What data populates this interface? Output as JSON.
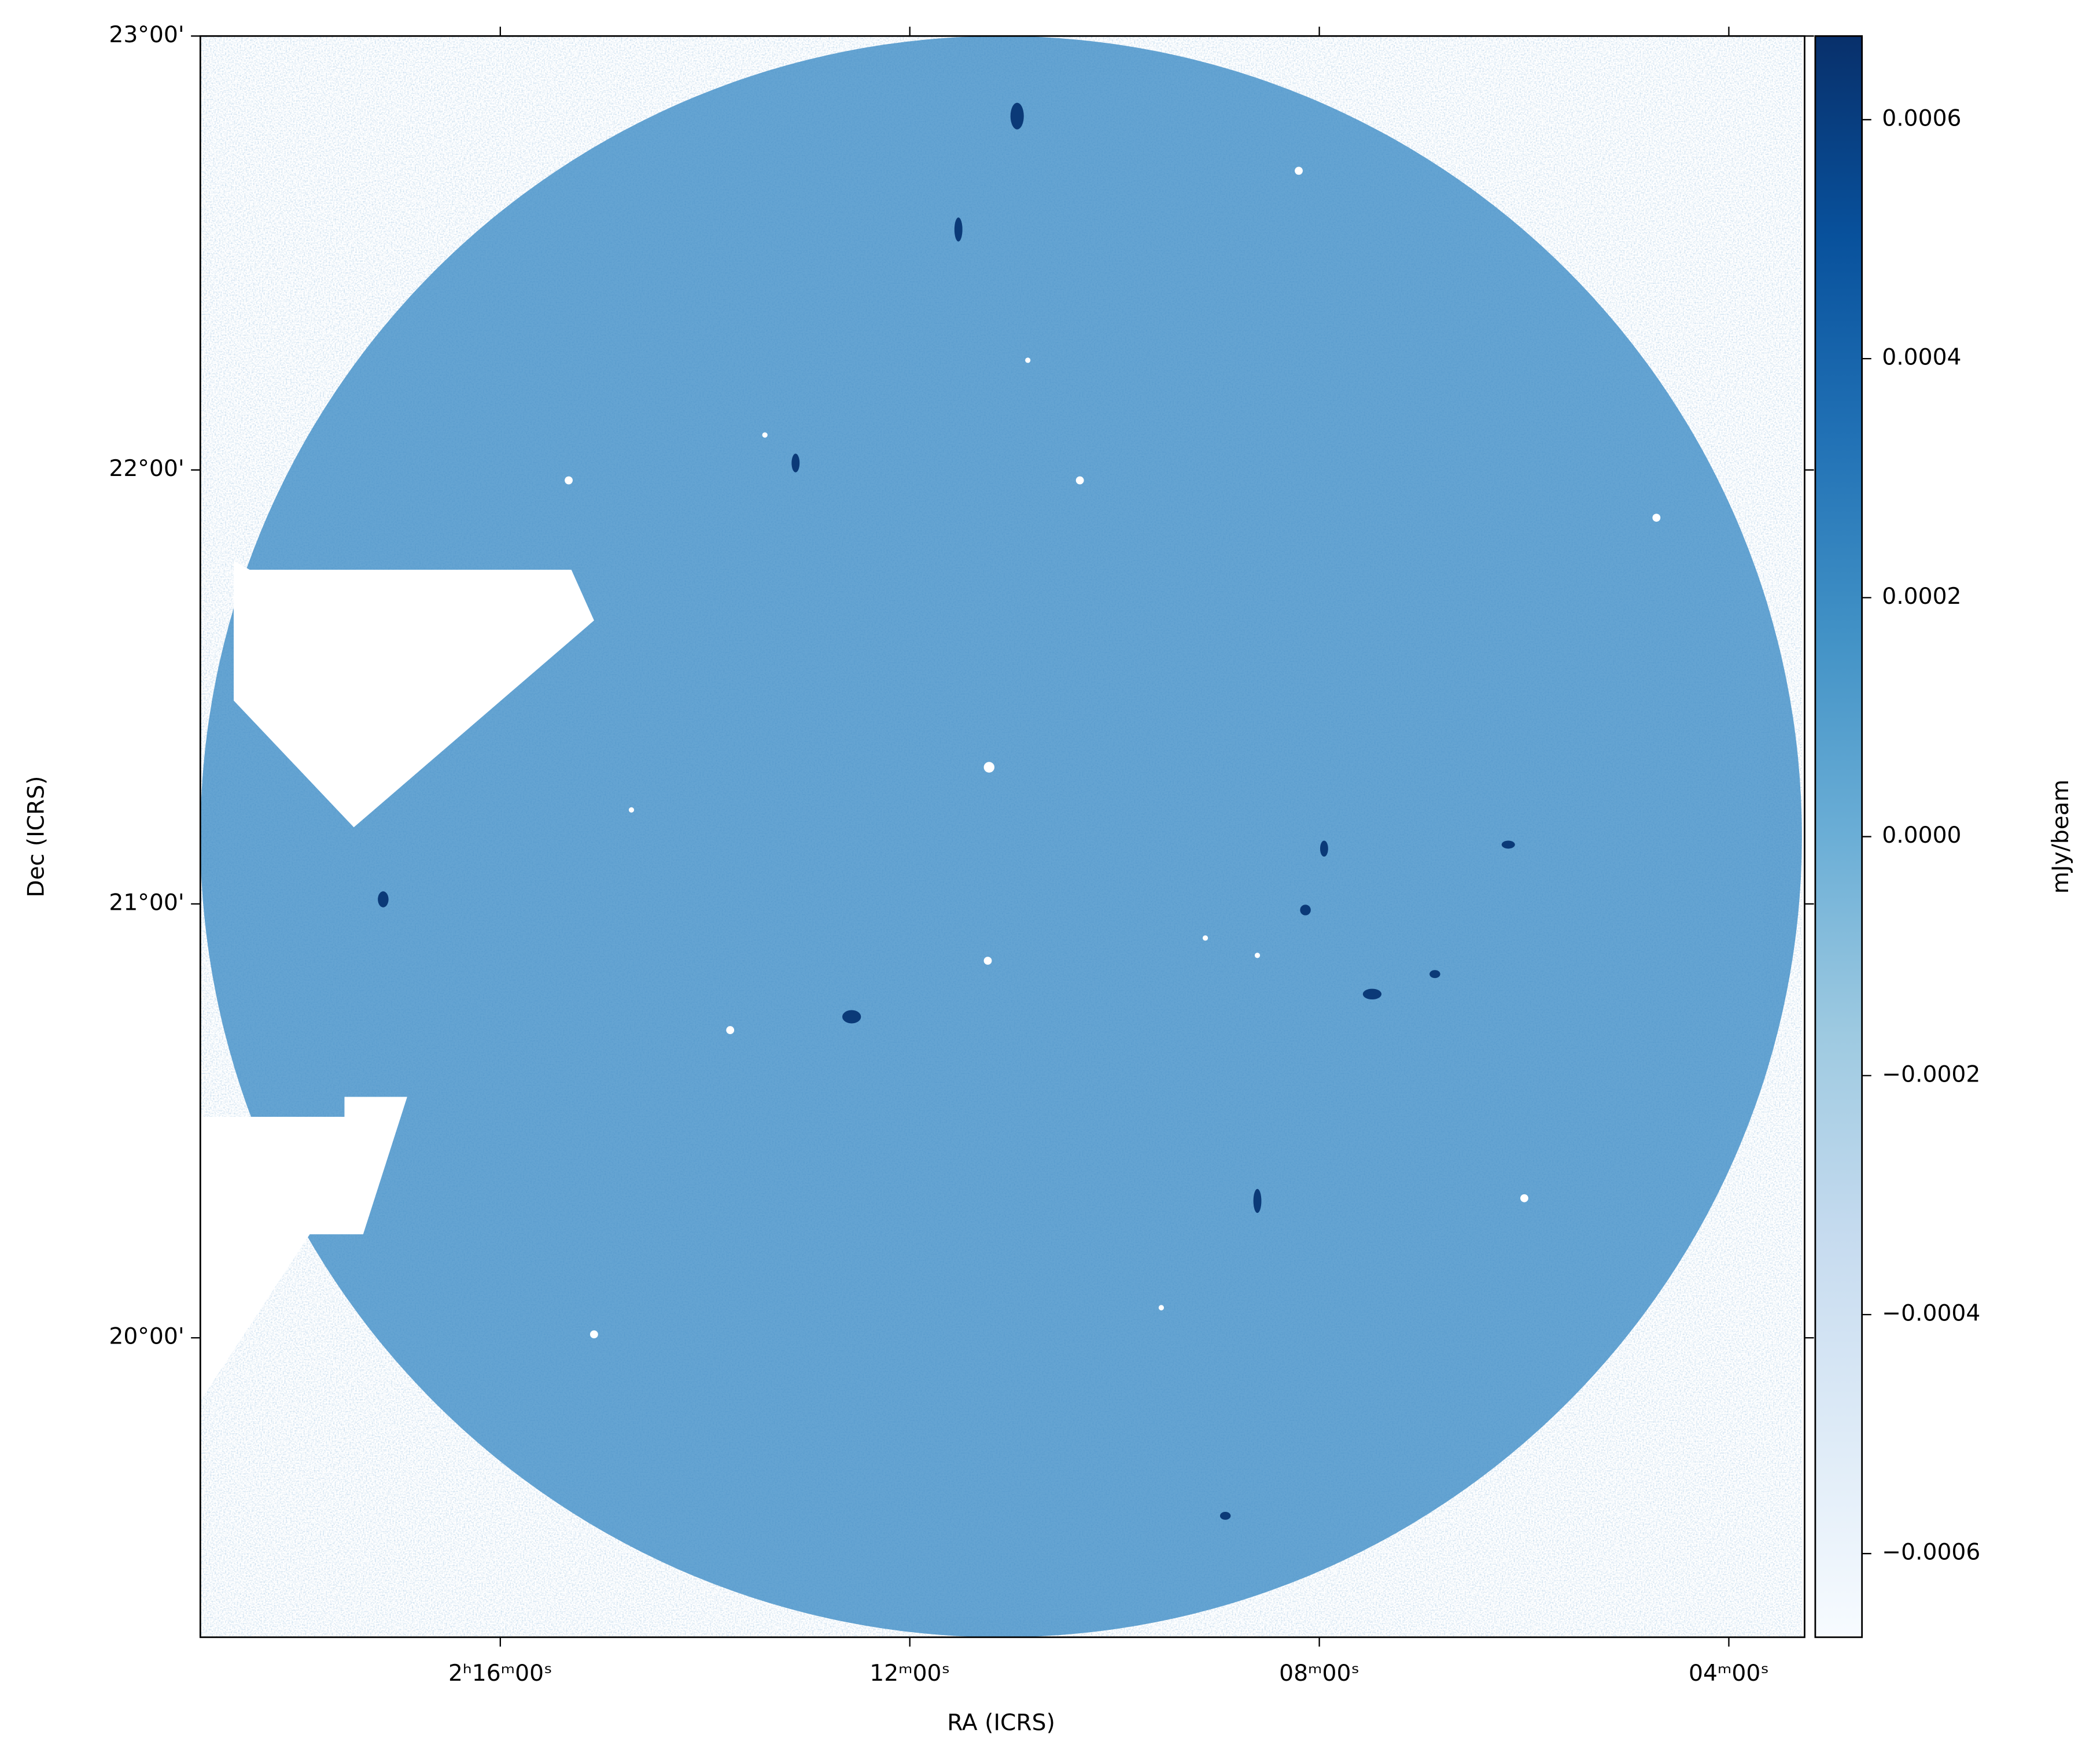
{
  "chart_data": {
    "type": "image",
    "xlabel": "RA (ICRS)",
    "ylabel": "Dec (ICRS)",
    "xlim": [
      138.93,
      123.26
    ],
    "xticks": [
      {
        "value": 136,
        "label": "2ʰ16ᵐ00ˢ"
      },
      {
        "value": 132,
        "label": "12ᵐ00ˢ"
      },
      {
        "value": 128,
        "label": "08ᵐ00ˢ"
      },
      {
        "value": 124,
        "label": "04ᵐ00ˢ"
      }
    ],
    "ylim": [
      19.31,
      23.0
    ],
    "yticks": [
      {
        "value": 20,
        "label": "20°00'"
      },
      {
        "value": 21,
        "label": "21°00'"
      },
      {
        "value": 22,
        "label": "22°00'"
      },
      {
        "value": 23,
        "label": "23°00'"
      }
    ],
    "colorbar": {
      "label": "mJy/beam",
      "lim": [
        -0.00067,
        0.00067
      ],
      "ticks": [
        {
          "value": -0.0006,
          "label": "−0.0006"
        },
        {
          "value": -0.0004,
          "label": "−0.0004"
        },
        {
          "value": -0.0002,
          "label": "−0.0002"
        },
        {
          "value": 0,
          "label": "0.0000"
        },
        0.0002,
        0.0004,
        0.0006
      ],
      "colors": [
        "#f7fbff",
        "#deebf7",
        "#c6dbef",
        "#9ecae1",
        "#6baed6",
        "#4292c6",
        "#2171b5",
        "#08519c",
        "#08306b"
      ]
    }
  }
}
